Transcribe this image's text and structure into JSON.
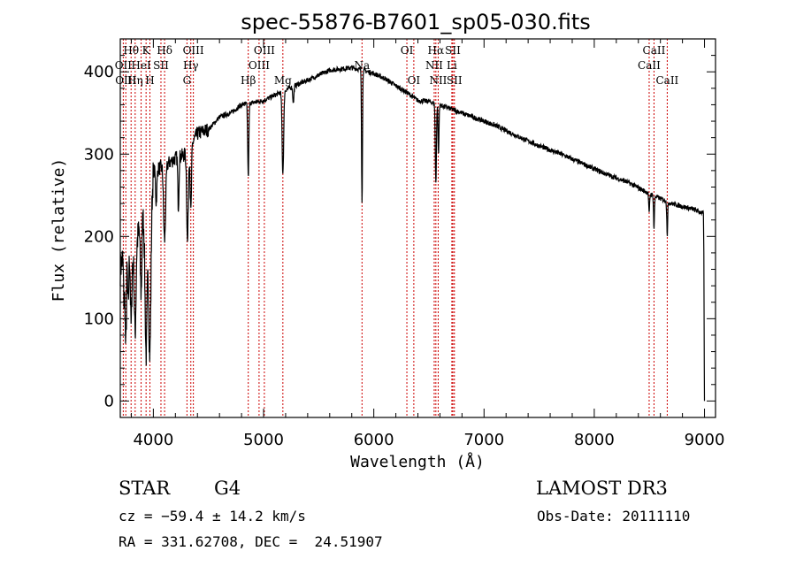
{
  "chart_data": {
    "type": "line",
    "title": "spec-55876-B7601_sp05-030.fits",
    "xlabel": "Wavelength (Å)",
    "ylabel": "Flux (relative)",
    "xlim": [
      3700,
      9100
    ],
    "ylim": [
      -20,
      440
    ],
    "xticks": [
      4000,
      5000,
      6000,
      7000,
      8000,
      9000
    ],
    "yticks": [
      0,
      100,
      200,
      300,
      400
    ],
    "continuum": {
      "x": [
        3700,
        3760,
        3820,
        3900,
        3960,
        4000,
        4100,
        4200,
        4300,
        4400,
        4500,
        4600,
        4700,
        4800,
        5000,
        5200,
        5400,
        5600,
        5800,
        5900,
        6000,
        6100,
        6200,
        6300,
        6400,
        6500,
        6700,
        6900,
        7100,
        7300,
        7500,
        7700,
        7900,
        8100,
        8300,
        8500,
        8700,
        8900,
        8990
      ],
      "y": [
        160,
        200,
        170,
        230,
        190,
        280,
        285,
        295,
        300,
        325,
        330,
        345,
        350,
        360,
        365,
        378,
        390,
        402,
        405,
        402,
        398,
        392,
        383,
        375,
        365,
        364,
        355,
        345,
        335,
        322,
        310,
        300,
        288,
        276,
        266,
        252,
        240,
        233,
        228
      ]
    },
    "absorption": [
      {
        "x": 3734,
        "depth": 60,
        "width": 5
      },
      {
        "x": 3750,
        "depth": 130,
        "width": 6
      },
      {
        "x": 3771,
        "depth": 80,
        "width": 6
      },
      {
        "x": 3798,
        "depth": 90,
        "width": 6
      },
      {
        "x": 3835,
        "depth": 100,
        "width": 7
      },
      {
        "x": 3889,
        "depth": 90,
        "width": 7
      },
      {
        "x": 3934,
        "depth": 150,
        "width": 9
      },
      {
        "x": 3969,
        "depth": 150,
        "width": 9
      },
      {
        "x": 4026,
        "depth": 40,
        "width": 6
      },
      {
        "x": 4102,
        "depth": 90,
        "width": 9
      },
      {
        "x": 4227,
        "depth": 60,
        "width": 5
      },
      {
        "x": 4310,
        "depth": 110,
        "width": 7
      },
      {
        "x": 4340,
        "depth": 80,
        "width": 6
      },
      {
        "x": 4861,
        "depth": 90,
        "width": 5
      },
      {
        "x": 5175,
        "depth": 100,
        "width": 7
      },
      {
        "x": 5270,
        "depth": 20,
        "width": 5
      },
      {
        "x": 5893,
        "depth": 160,
        "width": 4
      },
      {
        "x": 6563,
        "depth": 95,
        "width": 5
      },
      {
        "x": 6587,
        "depth": 60,
        "width": 4
      },
      {
        "x": 8498,
        "depth": 25,
        "width": 4
      },
      {
        "x": 8542,
        "depth": 40,
        "width": 4
      },
      {
        "x": 8662,
        "depth": 40,
        "width": 4
      }
    ],
    "end_drop": [
      {
        "x": 8994,
        "y": 180
      },
      {
        "x": 8998,
        "y": 40
      },
      {
        "x": 9000,
        "y": 0
      }
    ],
    "spectral_lines": [
      {
        "label": "Hθ",
        "x": 3798,
        "row": 1
      },
      {
        "label": "OII",
        "x": 3727,
        "row": 2
      },
      {
        "label": "OIII",
        "x": 3750,
        "row": 3
      },
      {
        "label": "Hη",
        "x": 3835,
        "row": 3
      },
      {
        "label": "HeI",
        "x": 3889,
        "row": 2
      },
      {
        "label": "K",
        "x": 3934,
        "row": 1
      },
      {
        "label": "H",
        "x": 3969,
        "row": 3
      },
      {
        "label": "SII",
        "x": 4069,
        "row": 2
      },
      {
        "label": "Hδ",
        "x": 4102,
        "row": 1
      },
      {
        "label": "OIII",
        "x": 4363,
        "row": 1
      },
      {
        "label": "Hγ",
        "x": 4340,
        "row": 2
      },
      {
        "label": "G",
        "x": 4305,
        "row": 3
      },
      {
        "label": "Hβ",
        "x": 4861,
        "row": 3
      },
      {
        "label": "OIII",
        "x": 4959,
        "row": 2
      },
      {
        "label": "OIII",
        "x": 5007,
        "row": 1
      },
      {
        "label": "Mg",
        "x": 5175,
        "row": 3
      },
      {
        "label": "Na",
        "x": 5893,
        "row": 2
      },
      {
        "label": "OI",
        "x": 6300,
        "row": 1
      },
      {
        "label": "OI",
        "x": 6363,
        "row": 3
      },
      {
        "label": "Hα",
        "x": 6563,
        "row": 1
      },
      {
        "label": "NII",
        "x": 6548,
        "row": 2
      },
      {
        "label": "NII",
        "x": 6584,
        "row": 3
      },
      {
        "label": "SII",
        "x": 6717,
        "row": 1
      },
      {
        "label": "Li",
        "x": 6708,
        "row": 2
      },
      {
        "label": "SII",
        "x": 6731,
        "row": 3
      },
      {
        "label": "CaII",
        "x": 8498,
        "row": 2
      },
      {
        "label": "CaII",
        "x": 8542,
        "row": 1
      },
      {
        "label": "CaII",
        "x": 8662,
        "row": 3
      }
    ],
    "line_marker_color": "#cc0000",
    "spectrum_color": "#000000"
  },
  "info": {
    "object_class": "STAR",
    "subclass": "G4",
    "survey": "LAMOST DR3",
    "redshift": "cz = −59.4 ± 14.2 km/s",
    "obs_date": "Obs-Date: 20111110",
    "coords": "RA = 331.62708, DEC =  24.51907"
  }
}
